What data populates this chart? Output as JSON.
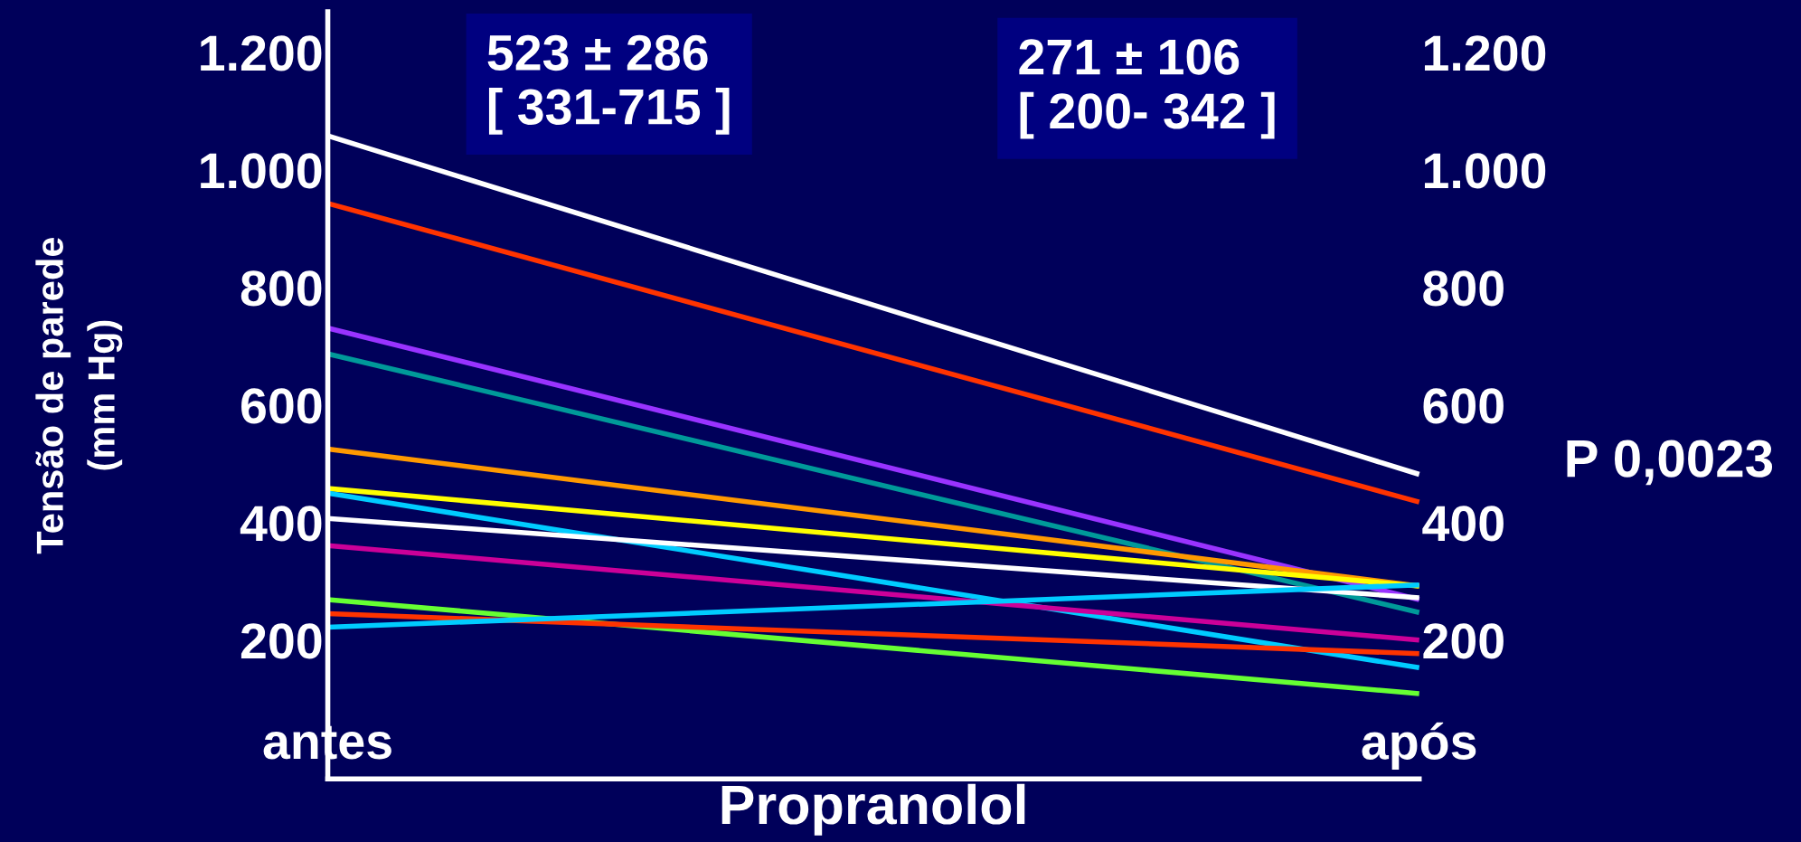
{
  "chart_data": {
    "type": "line",
    "xlabel": "Propranolol",
    "ylabel": "Tensão de parede\n(mm Hg)",
    "categories": [
      "antes",
      "após"
    ],
    "series": [
      {
        "color": "#ffffff",
        "values": [
          1058,
          482
        ]
      },
      {
        "color": "#ff3300",
        "values": [
          943,
          435
        ]
      },
      {
        "color": "#9933ff",
        "values": [
          731,
          269
        ]
      },
      {
        "color": "#009999",
        "values": [
          687,
          247
        ]
      },
      {
        "color": "#ff9900",
        "values": [
          525,
          292
        ]
      },
      {
        "color": "#ffff00",
        "values": [
          458,
          292
        ]
      },
      {
        "color": "#00ccff",
        "values": [
          450,
          153
        ]
      },
      {
        "color": "#ffffff",
        "values": [
          407,
          272
        ]
      },
      {
        "color": "#cc0099",
        "values": [
          361,
          200
        ]
      },
      {
        "color": "#66ff33",
        "values": [
          269,
          109
        ]
      },
      {
        "color": "#ff3300",
        "values": [
          245,
          177
        ]
      },
      {
        "color": "#00ccff",
        "values": [
          222,
          294
        ]
      }
    ],
    "ylim": [
      -36,
      1269
    ],
    "yticks": [
      {
        "value": 200,
        "label": "200"
      },
      {
        "value": 400,
        "label": "400"
      },
      {
        "value": 600,
        "label": "600"
      },
      {
        "value": 800,
        "label": "800"
      },
      {
        "value": 1000,
        "label": "1.000"
      },
      {
        "value": 1200,
        "label": "1.200"
      }
    ],
    "y2lim": [
      -36,
      1269
    ],
    "y2ticks": [
      {
        "value": 200,
        "label": "200"
      },
      {
        "value": 400,
        "label": "400"
      },
      {
        "value": 600,
        "label": "600"
      },
      {
        "value": 800,
        "label": "800"
      },
      {
        "value": 1000,
        "label": "1.000"
      },
      {
        "value": 1200,
        "label": "1.200"
      }
    ],
    "annotations": [
      "523 ± 286\n[ 331-715 ]",
      "271 ± 106\n[ 200- 342 ]",
      "P 0,0023"
    ],
    "grid": false,
    "legend": false,
    "marker": "none",
    "line_style": "solid"
  }
}
